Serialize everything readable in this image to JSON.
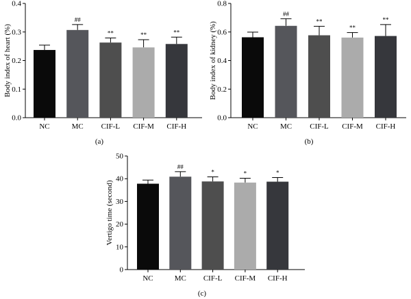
{
  "chart_data": [
    {
      "type": "bar",
      "panel_label": "(a)",
      "ylabel": "Body index of heart (%)",
      "xlabel": "",
      "ylim": [
        0,
        0.4
      ],
      "yticks": [
        "0.0",
        "0.1",
        "0.2",
        "0.3",
        "0.4"
      ],
      "categories": [
        "NC",
        "MC",
        "CIF-L",
        "CIF-M",
        "CIF-H"
      ],
      "values": [
        0.237,
        0.307,
        0.263,
        0.246,
        0.258
      ],
      "errors": [
        0.017,
        0.019,
        0.016,
        0.027,
        0.024
      ],
      "significance": [
        "",
        "##",
        "**",
        "**",
        "**"
      ],
      "colors": [
        "#0a0a0a",
        "#55565b",
        "#4e4e4e",
        "#ababab",
        "#36373c"
      ]
    },
    {
      "type": "bar",
      "panel_label": "(b)",
      "ylabel": "Body index of kidney (%)",
      "xlabel": "",
      "ylim": [
        0,
        0.8
      ],
      "yticks": [
        "0.0",
        "0.2",
        "0.4",
        "0.6",
        "0.8"
      ],
      "categories": [
        "NC",
        "MC",
        "CIF-L",
        "CIF-M",
        "CIF-H"
      ],
      "values": [
        0.563,
        0.643,
        0.577,
        0.561,
        0.572
      ],
      "errors": [
        0.036,
        0.05,
        0.063,
        0.035,
        0.08
      ],
      "significance": [
        "",
        "##",
        "**",
        "**",
        "**"
      ],
      "colors": [
        "#0a0a0a",
        "#55565b",
        "#4e4e4e",
        "#ababab",
        "#36373c"
      ]
    },
    {
      "type": "bar",
      "panel_label": "(c)",
      "ylabel": "Vertigo time (second)",
      "xlabel": "",
      "ylim": [
        0,
        50
      ],
      "yticks": [
        "0",
        "10",
        "20",
        "30",
        "40",
        "50"
      ],
      "categories": [
        "NC",
        "MC",
        "CIF-L",
        "CIF-M",
        "CIF-H"
      ],
      "values": [
        37.8,
        40.9,
        38.8,
        38.3,
        38.7
      ],
      "errors": [
        1.6,
        2.2,
        2.0,
        1.9,
        1.8
      ],
      "significance": [
        "",
        "##",
        "*",
        "*",
        "*"
      ],
      "colors": [
        "#0a0a0a",
        "#55565b",
        "#4e4e4e",
        "#ababab",
        "#36373c"
      ]
    }
  ]
}
